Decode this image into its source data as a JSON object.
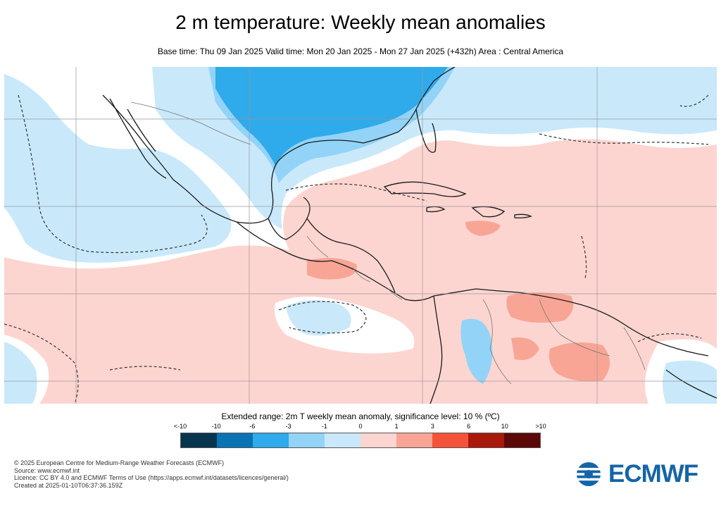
{
  "title": "2 m temperature: Weekly mean anomalies",
  "subtitle": "Base time: Thu 09 Jan 2025 Valid time: Mon 20 Jan 2025 - Mon 27 Jan 2025 (+432h) Area : Central America",
  "legend": {
    "title": "Extended range: 2m T weekly mean anomaly, significance level: 10 % (ºC)",
    "ticks": [
      "<-10",
      "-10",
      "-6",
      "-3",
      "-1",
      "0",
      "1",
      "3",
      "6",
      "10",
      ">10"
    ],
    "colors": [
      "#08354e",
      "#0a73b4",
      "#2faaea",
      "#93d3f8",
      "#c9e9fb",
      "#fdd5d0",
      "#f8a595",
      "#f4533a",
      "#a8190c",
      "#5c0808"
    ]
  },
  "credits": [
    "© 2025 European Centre for Medium-Range Weather Forecasts (ECMWF)",
    "Source: www.ecmwf.int",
    "Licence: CC BY 4.0 and ECMWF Terms of Use (https://apps.ecmwf.int/datasets/licences/general/)",
    "Created at 2025-01-10T06:37:36.159Z"
  ],
  "logo_text": "ECMWF",
  "map_colors": {
    "warm_light": "#fdd5d0",
    "warm_mid": "#f8a595",
    "cold_light": "#c9e9fb",
    "cold_mid": "#93d3f8",
    "cold_strong": "#2faaea",
    "neutral": "#ffffff",
    "coastline": "#1a1a1a",
    "border": "#777777",
    "grid": "#999999"
  }
}
